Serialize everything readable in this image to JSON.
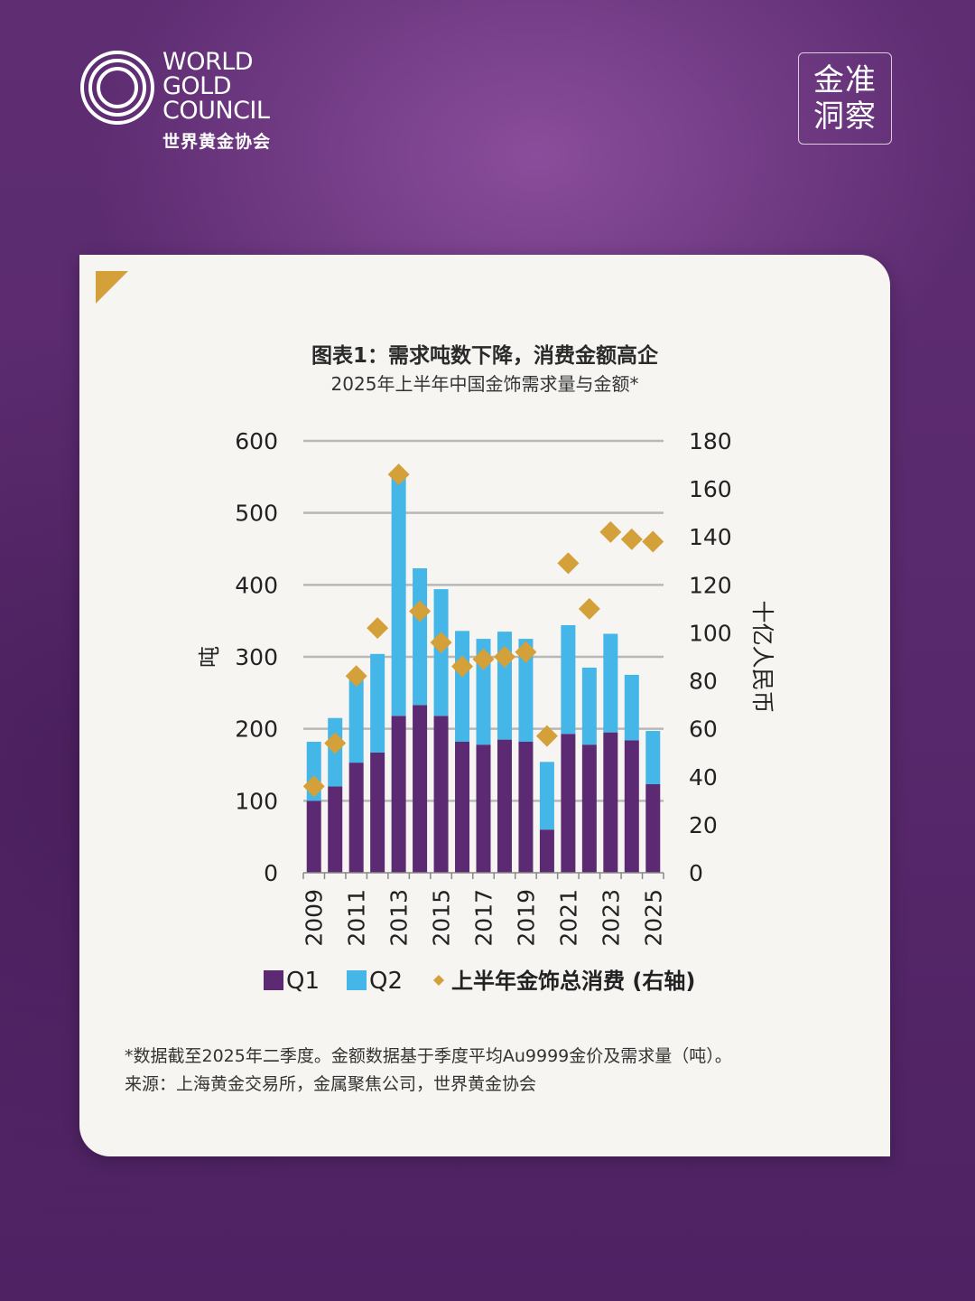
{
  "brand": {
    "line1": "WORLD",
    "line2": "GOLD",
    "line3": "COUNCIL",
    "cn": "世界黄金协会"
  },
  "badge": {
    "line1": "金准",
    "line2": "洞察"
  },
  "colors": {
    "q1": "#5b2a73",
    "q2": "#45b6e8",
    "total": "#d4a03a",
    "grid": "#b8b8b8"
  },
  "chart_data": {
    "type": "bar",
    "title": "图表1：需求吨数下降，消费金额高企",
    "subtitle": "2025年上半年中国金饰需求量与金额*",
    "ylabel": "吨",
    "y2label": "十亿人民币",
    "ylim": [
      0,
      600
    ],
    "y2lim": [
      0,
      180
    ],
    "yticks": [
      "0",
      "100",
      "200",
      "300",
      "400",
      "500",
      "600"
    ],
    "y2ticks": [
      "0",
      "20",
      "40",
      "60",
      "80",
      "100",
      "120",
      "140",
      "160",
      "180"
    ],
    "grid": true,
    "stacked": true,
    "categories": [
      "2009",
      "2010",
      "2011",
      "2012",
      "2013",
      "2014",
      "2015",
      "2016",
      "2017",
      "2018",
      "2019",
      "2020",
      "2021",
      "2022",
      "2023",
      "2024",
      "2025"
    ],
    "xticklabels": [
      "2009",
      "",
      "2011",
      "",
      "2013",
      "",
      "2015",
      "",
      "2017",
      "",
      "2019",
      "",
      "2021",
      "",
      "2023",
      "",
      "2025"
    ],
    "series": [
      {
        "name": "Q1",
        "type": "bar",
        "axis": "left",
        "values": [
          100,
          120,
          153,
          167,
          218,
          233,
          218,
          182,
          178,
          185,
          182,
          60,
          193,
          178,
          195,
          184,
          123
        ]
      },
      {
        "name": "Q2",
        "type": "bar",
        "axis": "left",
        "values": [
          82,
          95,
          115,
          137,
          332,
          190,
          176,
          154,
          147,
          150,
          143,
          94,
          151,
          107,
          137,
          91,
          74
        ]
      },
      {
        "name": "上半年金饰总消费 (右轴)",
        "type": "scatter",
        "axis": "right",
        "values": [
          36,
          54,
          82,
          102,
          166,
          109,
          96,
          86,
          89,
          90,
          92,
          57,
          129,
          110,
          142,
          139,
          138
        ]
      }
    ],
    "legend_position": "bottom"
  },
  "footnote": {
    "line1": "*数据截至2025年二季度。金额数据基于季度平均Au9999金价及需求量（吨）。",
    "line2": "来源：上海黄金交易所，金属聚焦公司，世界黄金协会"
  }
}
